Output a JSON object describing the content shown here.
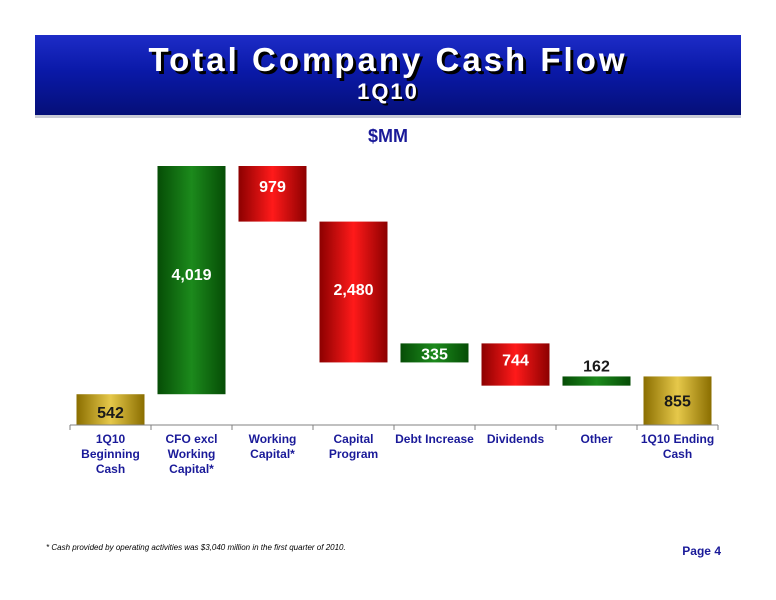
{
  "header": {
    "title": "Total Company Cash Flow",
    "subtitle": "1Q10"
  },
  "chart_data": {
    "type": "waterfall",
    "unit_label": "$MM",
    "ylim": [
      0,
      4600
    ],
    "grid": false,
    "legend": "none",
    "categories": [
      "1Q10 Beginning Cash",
      "CFO excl Working Capital*",
      "Working Capital*",
      "Capital Program",
      "Debt Increase",
      "Dividends",
      "Other",
      "1Q10 Ending Cash"
    ],
    "category_lines": [
      [
        "1Q10",
        "Beginning",
        "Cash"
      ],
      [
        "CFO excl",
        "Working",
        "Capital*"
      ],
      [
        "Working",
        "Capital*"
      ],
      [
        "Capital",
        "Program"
      ],
      [
        "Debt Increase"
      ],
      [
        "Dividends"
      ],
      [
        "Other"
      ],
      [
        "1Q10 Ending",
        "Cash"
      ]
    ],
    "values": [
      542,
      4019,
      -979,
      -2480,
      335,
      -744,
      162,
      855
    ],
    "labels": [
      "542",
      "4,019",
      "979",
      "2,480",
      "335",
      "744",
      "162",
      "855"
    ],
    "kinds": [
      "total",
      "increase",
      "decrease",
      "decrease",
      "increase",
      "decrease",
      "increase",
      "total"
    ],
    "colors": {
      "total": "#d4b000",
      "increase": "#1c8a1c",
      "decrease": "#e00000"
    }
  },
  "footer": {
    "footnote": "* Cash provided by operating activities was $3,040 million in the first quarter of 2010.",
    "page": "Page 4"
  }
}
